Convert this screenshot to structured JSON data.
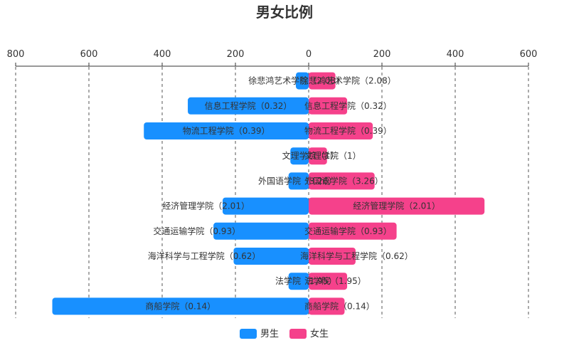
{
  "chart_data": {
    "type": "bar",
    "orientation": "horizontal-diverging",
    "title": "男女比例",
    "xlim": [
      -800,
      600
    ],
    "xticks": [
      -800,
      -600,
      -400,
      -200,
      0,
      200,
      400,
      600
    ],
    "xtick_labels": [
      "800",
      "600",
      "400",
      "200",
      "0",
      "200",
      "400",
      "600"
    ],
    "grid": true,
    "legend_position": "bottom-center",
    "categories": [
      "徐悲鸿艺术学院",
      "信息工程学院",
      "物流工程学院",
      "文理学院",
      "外国语学院",
      "经济管理学院",
      "交通运输学院",
      "海洋科学与工程学院",
      "法学院",
      "商船学院"
    ],
    "series": [
      {
        "name": "男生",
        "color": "#1890ff",
        "values": [
          35,
          330,
          450,
          50,
          55,
          235,
          260,
          205,
          55,
          700
        ],
        "labels": [
          "徐悲鸿艺术学院（2.08）",
          "信息工程学院（0.32）",
          "物流工程学院（0.39）",
          "文理学院（1）",
          "外国语学院（3.26）",
          "经济管理学院（2.01）",
          "交通运输学院（0.93）",
          "海洋科学与工程学院（0.62）",
          "法学院（1.95）",
          "商船学院（0.14）"
        ]
      },
      {
        "name": "女生",
        "color": "#f5418b",
        "values": [
          73,
          105,
          175,
          50,
          180,
          480,
          240,
          128,
          105,
          98
        ],
        "labels": [
          "徐悲鸿艺术学院（2.08）",
          "信息工程学院（0.32）",
          "物流工程学院（0.39）",
          "文理学院（1）",
          "外国语学院（3.26）",
          "经济管理学院（2.01）",
          "交通运输学院（0.93）",
          "海洋科学与工程学院（0.62）",
          "法学院（1.95）",
          "商船学院（0.14）"
        ]
      }
    ]
  }
}
